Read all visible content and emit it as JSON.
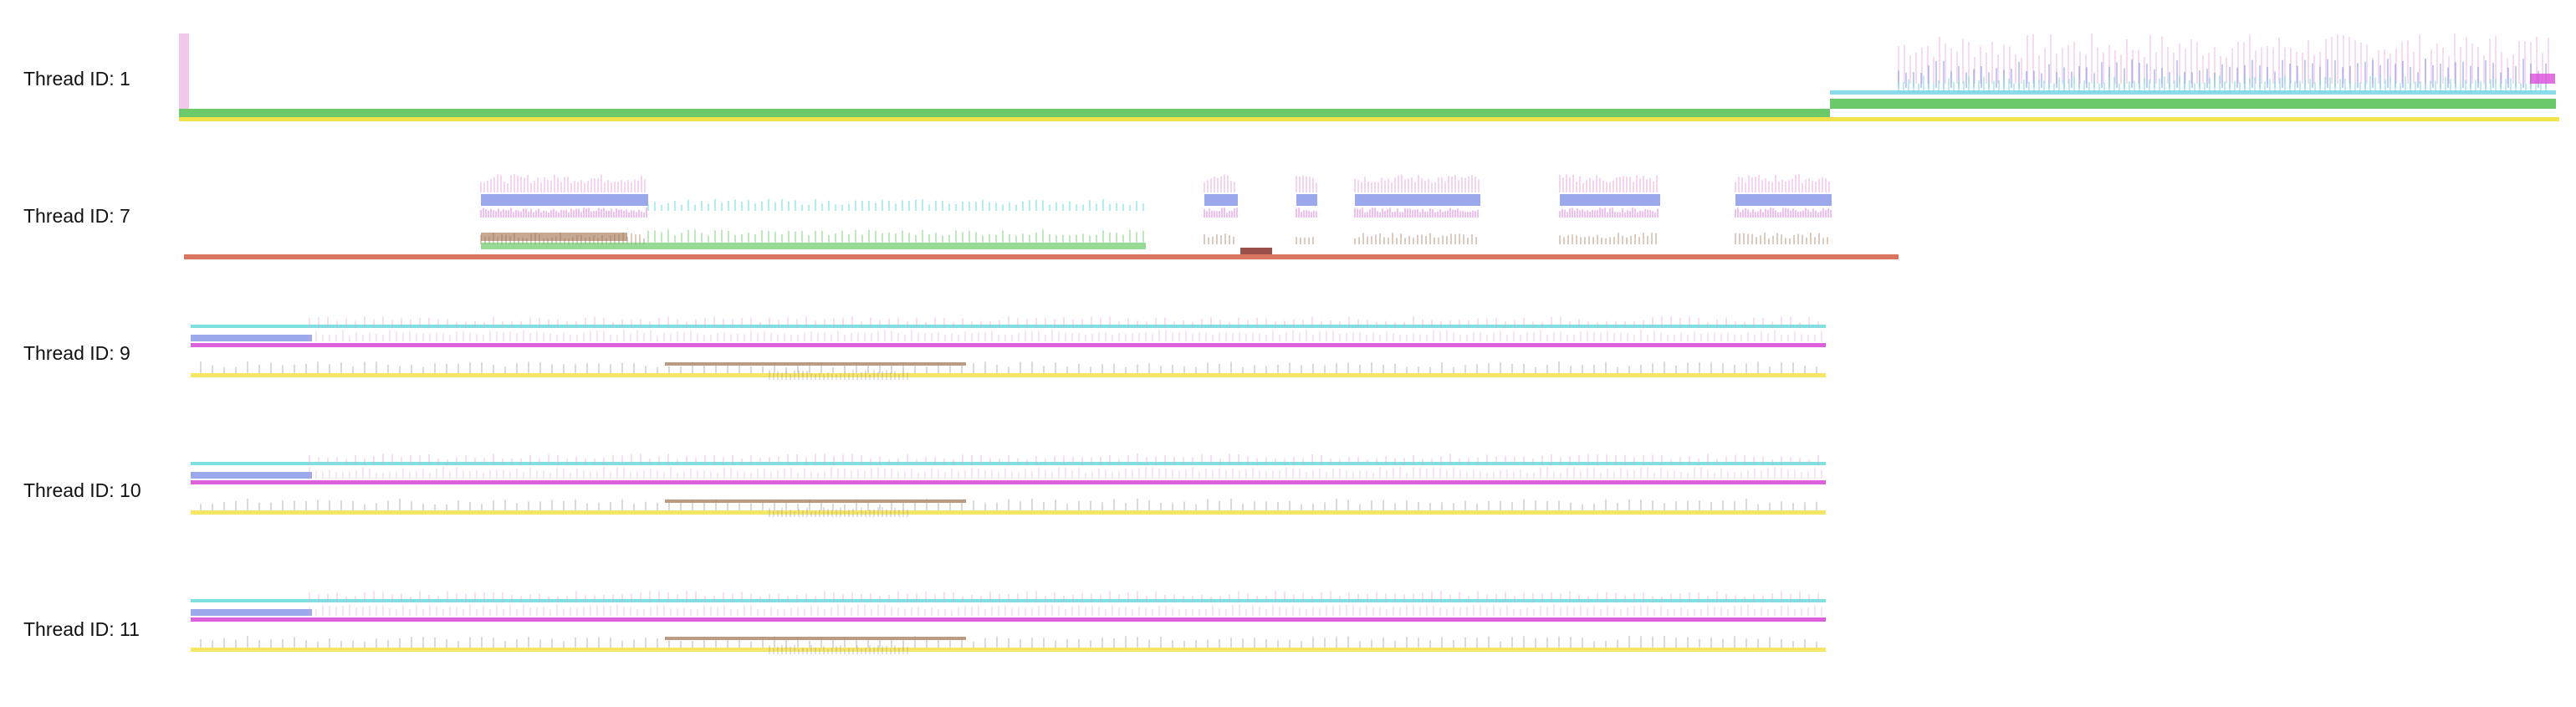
{
  "threads": [
    {
      "id": "1",
      "label": "Thread ID: 1"
    },
    {
      "id": "7",
      "label": "Thread ID: 7"
    },
    {
      "id": "9",
      "label": "Thread ID: 9"
    },
    {
      "id": "10",
      "label": "Thread ID: 10"
    },
    {
      "id": "11",
      "label": "Thread ID: 11"
    }
  ],
  "colors": {
    "green": "#6cc96a",
    "yellow": "#f3e24a",
    "orange_red": "#d9765f",
    "cyan": "#5fd8d8",
    "magenta": "#d94fd9",
    "blue": "#5a6ee0",
    "pink": "#e79bd8",
    "brown": "#a0704a",
    "gray": "#999999"
  }
}
